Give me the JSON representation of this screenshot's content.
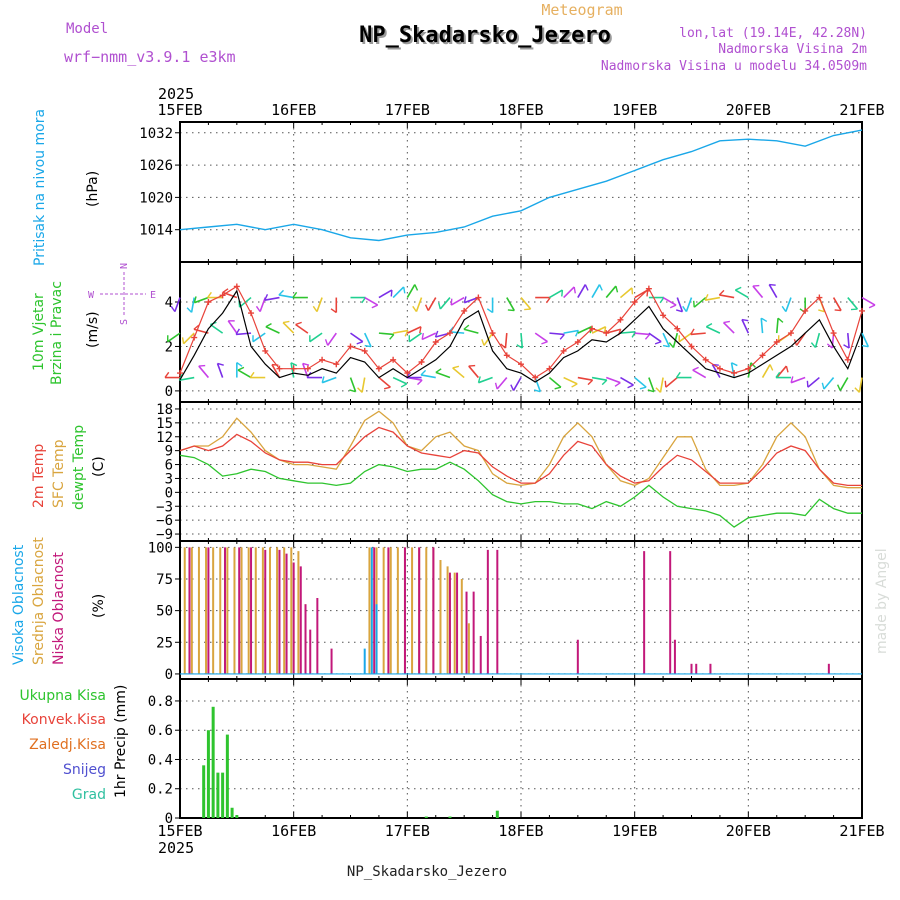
{
  "header": {
    "model_label": "Model",
    "model_name": "wrf−nmm_v3.9.1 e3km",
    "meteogram_label": "Meteogram",
    "station_title": "NP_Skadarsko_Jezero",
    "lonlat": "lon,lat (19.14E, 42.28N)",
    "altitude": "Nadmorska Visina 2m",
    "model_altitude": "Nadmorska Visina u modelu 34.0509m",
    "year_top": "2025",
    "year_bottom": "2025",
    "footer_station": "NP_Skadarsko_Jezero",
    "watermark": "made by Angel"
  },
  "colors": {
    "pressure": "#1aa7e8",
    "wind_speed": "#000000",
    "wind_gust": "#e8433a",
    "t2m": "#e8433a",
    "sfc": "#d9a53f",
    "dewpoint": "#2ec42e",
    "high_cloud": "#1aa7e8",
    "mid_cloud": "#d9a53f",
    "low_cloud": "#c2187a",
    "precip_total": "#2ec42e",
    "purple_text": "#b050d0",
    "orange_text": "#e6b060"
  },
  "chart_data": [
    {
      "type": "line",
      "id": "pressure",
      "ylabel_main": "Pritisak na nivou mora",
      "ylabel_unit": "(hPa)",
      "x_categories": [
        "15FEB",
        "16FEB",
        "17FEB",
        "18FEB",
        "19FEB",
        "20FEB",
        "21FEB"
      ],
      "xlim": [
        0,
        144
      ],
      "ylim": [
        1008,
        1034
      ],
      "yticks": [
        1014,
        1020,
        1026,
        1032
      ],
      "x": [
        0,
        6,
        12,
        18,
        24,
        30,
        36,
        42,
        48,
        54,
        60,
        66,
        72,
        78,
        84,
        90,
        96,
        102,
        108,
        114,
        120,
        126,
        132,
        138,
        144
      ],
      "series": [
        {
          "name": "MSLP",
          "values": [
            1014,
            1014.5,
            1015,
            1014,
            1015,
            1014,
            1012.5,
            1012,
            1013,
            1013.5,
            1014.5,
            1016.5,
            1017.5,
            1020,
            1021.5,
            1023,
            1025,
            1027,
            1028.5,
            1030.5,
            1030.8,
            1030.5,
            1029.5,
            1031.5,
            1032.5
          ]
        }
      ]
    },
    {
      "type": "line",
      "id": "wind",
      "ylabel_main": "10m Vjetar",
      "ylabel_sub": "Brzina i Pravac",
      "ylabel_unit": "(m/s)",
      "compass_n": "N",
      "compass_w": "W",
      "compass_e": "E",
      "compass_s": "S",
      "xlim": [
        0,
        144
      ],
      "ylim": [
        -0.5,
        5.8
      ],
      "yticks": [
        0,
        2,
        4
      ],
      "x": [
        0,
        3,
        6,
        9,
        12,
        15,
        18,
        21,
        24,
        27,
        30,
        33,
        36,
        39,
        42,
        45,
        48,
        51,
        54,
        57,
        60,
        63,
        66,
        69,
        72,
        75,
        78,
        81,
        84,
        87,
        90,
        93,
        96,
        99,
        102,
        105,
        108,
        111,
        114,
        117,
        120,
        123,
        126,
        129,
        132,
        135,
        138,
        141,
        144
      ],
      "series": [
        {
          "name": "Brzina",
          "values": [
            0.5,
            1.6,
            2.8,
            3.5,
            4.5,
            2.0,
            1.2,
            0.6,
            0.8,
            0.7,
            1.0,
            0.8,
            1.5,
            1.3,
            0.6,
            1.0,
            0.6,
            1.0,
            1.4,
            2.0,
            3.2,
            3.6,
            1.8,
            1.0,
            0.8,
            0.4,
            0.8,
            1.5,
            1.8,
            2.3,
            2.2,
            2.6,
            3.2,
            3.8,
            2.8,
            2.2,
            1.6,
            1.0,
            0.8,
            0.6,
            0.8,
            1.2,
            1.6,
            2.0,
            2.6,
            3.2,
            2.0,
            1.0,
            2.7
          ]
        },
        {
          "name": "Udar",
          "values": [
            0.8,
            2.4,
            4.0,
            4.3,
            4.7,
            3.5,
            1.8,
            1.0,
            1.0,
            1.0,
            1.4,
            1.2,
            2.0,
            1.8,
            1.0,
            1.4,
            0.8,
            1.3,
            2.2,
            2.6,
            3.6,
            4.2,
            2.6,
            1.6,
            1.2,
            0.6,
            1.0,
            1.8,
            2.2,
            2.8,
            2.6,
            3.2,
            4.0,
            4.6,
            3.4,
            2.8,
            2.0,
            1.4,
            1.0,
            0.8,
            1.0,
            1.6,
            2.2,
            2.6,
            3.6,
            4.2,
            2.6,
            1.4,
            3.6
          ]
        }
      ],
      "barb_dirs": [
        200,
        190,
        250,
        270,
        290,
        230,
        200,
        260,
        280,
        270,
        200,
        180,
        90,
        120,
        60,
        45,
        30,
        200,
        210,
        220,
        240,
        250,
        180,
        150,
        140,
        90,
        60,
        45,
        30,
        30,
        40,
        50,
        60,
        90,
        120,
        160,
        200,
        230,
        260,
        280,
        300,
        320,
        330,
        200,
        180,
        160,
        150,
        140,
        120
      ]
    },
    {
      "type": "line",
      "id": "temperature",
      "ylabel_t2m": "2m Temp",
      "ylabel_sfc": "SFC Temp",
      "ylabel_dew": "dewpt Temp",
      "ylabel_unit": "(C)",
      "xlim": [
        0,
        144
      ],
      "ylim": [
        -10.5,
        19.5
      ],
      "yticks": [
        -9,
        -6,
        -3,
        0,
        3,
        6,
        9,
        12,
        15,
        18
      ],
      "x": [
        0,
        3,
        6,
        9,
        12,
        15,
        18,
        21,
        24,
        27,
        30,
        33,
        36,
        39,
        42,
        45,
        48,
        51,
        54,
        57,
        60,
        63,
        66,
        69,
        72,
        75,
        78,
        81,
        84,
        87,
        90,
        93,
        96,
        99,
        102,
        105,
        108,
        111,
        114,
        117,
        120,
        123,
        126,
        129,
        132,
        135,
        138,
        141,
        144
      ],
      "series": [
        {
          "name": "2m Temp",
          "values": [
            9,
            10,
            9,
            10,
            12.5,
            11,
            8.5,
            7,
            6.5,
            6.5,
            6,
            6,
            9,
            12,
            14,
            13,
            10,
            8.5,
            8,
            7.5,
            9,
            8.5,
            5.5,
            3.5,
            2,
            2,
            4,
            8,
            11,
            10,
            6,
            3.5,
            2,
            2.5,
            5.5,
            8,
            7,
            4.5,
            2,
            2,
            2,
            5,
            8.5,
            10,
            9,
            5,
            2,
            1.5,
            1.5
          ]
        },
        {
          "name": "SFC Temp",
          "values": [
            9,
            10,
            10,
            12,
            16,
            13,
            9,
            7,
            6,
            6,
            5.5,
            5,
            10,
            15.5,
            17.5,
            15,
            10,
            9,
            12,
            13,
            10,
            9,
            4,
            2,
            1.5,
            2,
            6,
            12,
            15,
            12,
            6,
            2.5,
            1.5,
            3,
            7.5,
            12,
            12,
            5,
            1.5,
            1.5,
            2,
            6,
            12,
            15,
            12,
            5,
            1.5,
            1,
            1
          ]
        },
        {
          "name": "dewpt Temp",
          "values": [
            8,
            7.5,
            6,
            3.5,
            4,
            5,
            4.5,
            3,
            2.5,
            2,
            2,
            1.5,
            2,
            4.5,
            6,
            5.5,
            4.5,
            5,
            5,
            6.5,
            5,
            2.5,
            -0.5,
            -2,
            -2.5,
            -2,
            -2,
            -2.5,
            -2.5,
            -3.5,
            -2,
            -3,
            -1,
            1.5,
            -1,
            -3,
            -3.5,
            -4,
            -5,
            -7.5,
            -5.5,
            -5,
            -4.5,
            -4.5,
            -5,
            -1.5,
            -3.5,
            -4.5,
            -4.5
          ]
        }
      ]
    },
    {
      "type": "bar",
      "id": "cloud",
      "ylabel_high": "Visoka Oblacnost",
      "ylabel_mid": "Srednja Oblacnost",
      "ylabel_low": "Niska Oblacnost",
      "ylabel_unit": "(%)",
      "xlim": [
        0,
        144
      ],
      "ylim": [
        -4,
        105
      ],
      "yticks": [
        0,
        25,
        50,
        75,
        100
      ],
      "mid_x": [
        1,
        2.5,
        4,
        5.5,
        7,
        8.5,
        10,
        11.5,
        13,
        14.5,
        16,
        17.5,
        19,
        20.5,
        22,
        23.5,
        25,
        26.5,
        40,
        41.5,
        43,
        44.5,
        46,
        47.5,
        49,
        50.5,
        52,
        53.5,
        55,
        56.5,
        58,
        59.5,
        61
      ],
      "mid_values": [
        100,
        100,
        100,
        100,
        100,
        100,
        100,
        100,
        100,
        100,
        100,
        100,
        100,
        100,
        100,
        100,
        97,
        55,
        100,
        100,
        100,
        100,
        100,
        100,
        100,
        100,
        100,
        100,
        90,
        85,
        80,
        75,
        40
      ],
      "low_x": [
        2,
        6,
        9.5,
        12.5,
        15,
        18,
        21,
        22.5,
        24,
        25.5,
        26.5,
        27.5,
        29,
        32,
        41,
        44,
        47.5,
        50.5,
        53.5,
        57,
        58.5,
        60.5,
        62,
        63.5,
        65,
        67,
        84,
        98,
        103.5,
        104.5,
        108,
        109,
        112,
        137
      ],
      "low_values": [
        100,
        100,
        100,
        100,
        100,
        98,
        98,
        95,
        88,
        85,
        55,
        35,
        60,
        20,
        100,
        100,
        100,
        100,
        100,
        80,
        80,
        65,
        65,
        30,
        98,
        98,
        27,
        97,
        97,
        27,
        8,
        8,
        8,
        8
      ],
      "high_x": [
        39,
        40.5,
        41.5
      ],
      "high_values": [
        20,
        100,
        55
      ]
    },
    {
      "type": "bar",
      "id": "precip",
      "ylabel_unit": "1hr Precip (mm)",
      "legend": [
        "Ukupna Kisa",
        "Konvek.Kisa",
        "Zaledj.Kisa",
        "Snijeg",
        "Grad"
      ],
      "xlim": [
        0,
        144
      ],
      "ylim": [
        0,
        0.95
      ],
      "yticks": [
        0,
        0.2,
        0.4,
        0.6,
        0.8
      ],
      "x": [
        5,
        6,
        7,
        8,
        9,
        10,
        11,
        12,
        52,
        57,
        67
      ],
      "values": [
        0.36,
        0.6,
        0.76,
        0.31,
        0.31,
        0.57,
        0.07,
        0.02,
        0.01,
        0.01,
        0.05
      ]
    }
  ]
}
